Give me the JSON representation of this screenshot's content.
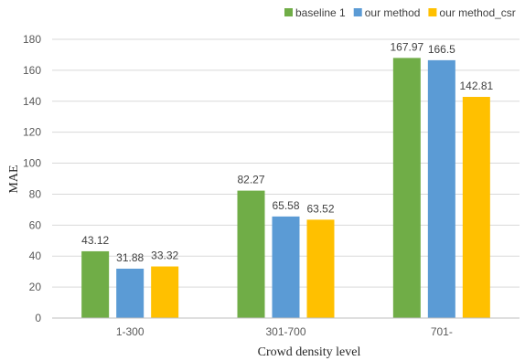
{
  "chart_data": {
    "type": "bar",
    "categories": [
      "1-300",
      "301-700",
      "701-"
    ],
    "series": [
      {
        "name": "baseline 1",
        "values": [
          43.12,
          82.27,
          167.97
        ],
        "color": "#70ad47"
      },
      {
        "name": "our method",
        "values": [
          31.88,
          65.58,
          166.5
        ],
        "color": "#5b9bd5"
      },
      {
        "name": "our method_csr",
        "values": [
          33.32,
          63.52,
          142.81
        ],
        "color": "#ffc000"
      }
    ],
    "data_labels": [
      [
        "43.12",
        "82.27",
        "167.97"
      ],
      [
        "31.88",
        "65.58",
        "166.5"
      ],
      [
        "33.32",
        "63.52",
        "142.81"
      ]
    ],
    "title": "",
    "xlabel": "Crowd density level",
    "ylabel": "MAE",
    "ylim": [
      0,
      180
    ],
    "yticks": [
      0,
      20,
      40,
      60,
      80,
      100,
      120,
      140,
      160,
      180
    ],
    "grid": true,
    "legend_position": "top-right"
  }
}
